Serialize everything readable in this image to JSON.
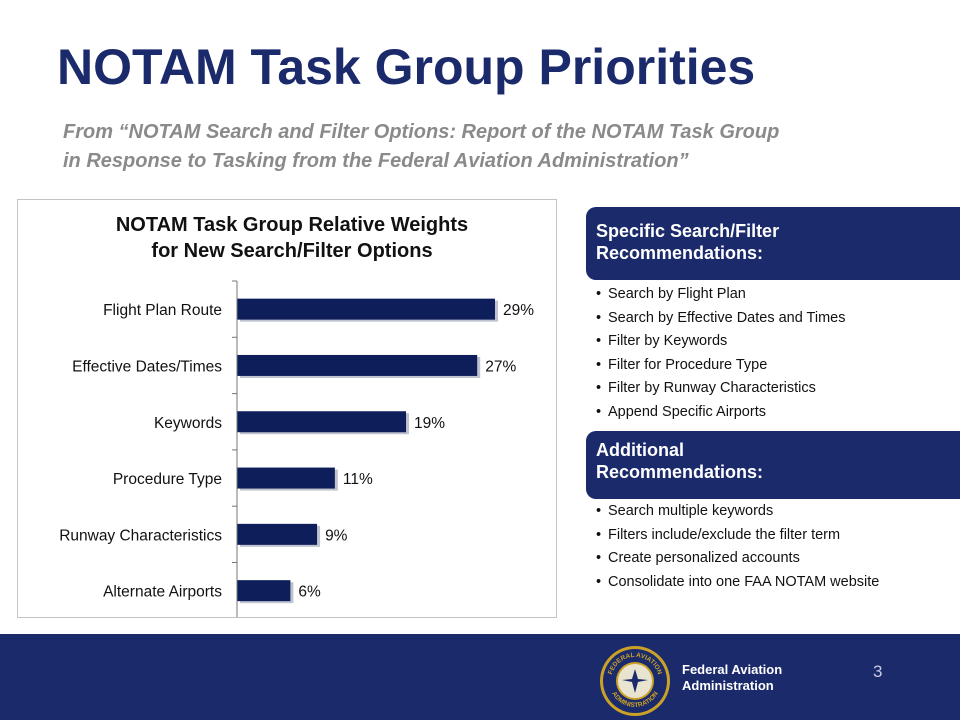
{
  "slide": {
    "title": "NOTAM Task Group Priorities",
    "subtitle_line1": "From “NOTAM Search and Filter Options: Report of the NOTAM Task Group",
    "subtitle_line2": "in Response to Tasking from the Federal Aviation Administration”",
    "page_number": "3"
  },
  "chart_data": {
    "type": "bar",
    "orientation": "horizontal",
    "title_line1": "NOTAM Task Group Relative Weights",
    "title_line2": "for New Search/Filter Options",
    "categories": [
      "Flight Plan Route",
      "Effective Dates/Times",
      "Keywords",
      "Procedure Type",
      "Runway Characteristics",
      "Alternate Airports"
    ],
    "values": [
      29,
      27,
      19,
      11,
      9,
      6
    ],
    "value_labels": [
      "29%",
      "27%",
      "19%",
      "11%",
      "9%",
      "6%"
    ],
    "unit": "%",
    "xlim": [
      0,
      30
    ],
    "bar_color": "#0e1e5b",
    "grid": false,
    "legend": "none"
  },
  "recommendations": {
    "specific": {
      "heading_line1": "Specific Search/Filter",
      "heading_line2": "Recommendations:",
      "items": [
        "Search by Flight Plan",
        "Search by Effective Dates and Times",
        "Filter by Keywords",
        "Filter for Procedure Type",
        "Filter by Runway Characteristics",
        "Append Specific Airports"
      ]
    },
    "additional": {
      "heading_line1": "Additional",
      "heading_line2": "Recommendations:",
      "items": [
        "Search multiple keywords",
        "Filters include/exclude the filter term",
        "Create personalized accounts",
        "Consolidate into one FAA NOTAM website"
      ]
    }
  },
  "footer": {
    "agency_line1": "Federal Aviation",
    "agency_line2": "Administration",
    "seal_top_text": "FEDERAL AVIATION",
    "seal_bottom_text": "ADMINISTRATION"
  },
  "colors": {
    "brand_navy": "#1b2a6b",
    "bar_navy": "#0e1e5b",
    "subtitle_gray": "#8a8a8a",
    "seal_gold": "#c9a227"
  }
}
